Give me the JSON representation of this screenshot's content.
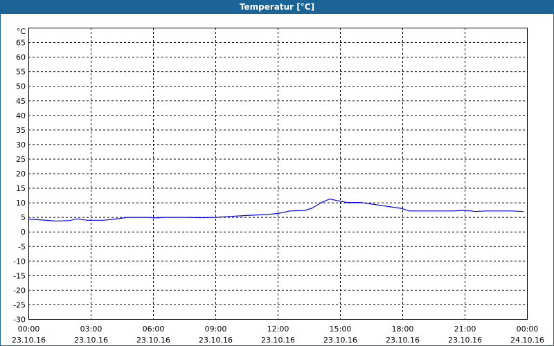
{
  "window": {
    "title": "Temperatur [°C]"
  },
  "chart_data": {
    "type": "line",
    "title": "Temperatur [°C]",
    "ylabel": "°C",
    "ylim": [
      -30,
      70
    ],
    "yticks": [
      65,
      60,
      55,
      50,
      45,
      40,
      35,
      30,
      25,
      20,
      15,
      10,
      5,
      0,
      -5,
      -10,
      -15,
      -20,
      -25,
      -30
    ],
    "xlim": [
      "23.10.16 00:00",
      "24.10.16 00:00"
    ],
    "xticks": [
      {
        "time": "00:00",
        "date": "23.10.16"
      },
      {
        "time": "03:00",
        "date": "23.10.16"
      },
      {
        "time": "06:00",
        "date": "23.10.16"
      },
      {
        "time": "09:00",
        "date": "23.10.16"
      },
      {
        "time": "12:00",
        "date": "23.10.16"
      },
      {
        "time": "15:00",
        "date": "23.10.16"
      },
      {
        "time": "18:00",
        "date": "23.10.16"
      },
      {
        "time": "21:00",
        "date": "23.10.16"
      },
      {
        "time": "00:00",
        "date": "24.10.16"
      }
    ],
    "grid": true,
    "line_color": "#0000ff",
    "series": [
      {
        "date": "23.10.16",
        "x": [
          "00:02",
          "00:40",
          "01:20",
          "02:00",
          "02:20",
          "02:50",
          "03:36",
          "04:10",
          "04:46",
          "05:46",
          "06:10",
          "06:30",
          "07:40",
          "08:20",
          "09:00",
          "09:40",
          "10:40",
          "11:30",
          "12:00",
          "12:36",
          "13:20",
          "13:40",
          "14:04",
          "14:30",
          "14:50",
          "15:20",
          "16:00",
          "16:40",
          "17:20",
          "17:56",
          "18:20",
          "20:30",
          "20:50",
          "21:20",
          "21:30",
          "22:00",
          "23:16",
          "23:50"
        ],
        "y": [
          4.3,
          4.0,
          3.6,
          3.8,
          4.4,
          3.9,
          3.9,
          4.3,
          4.9,
          4.9,
          4.7,
          4.9,
          4.9,
          4.8,
          4.9,
          5.2,
          5.6,
          5.9,
          6.2,
          7.1,
          7.3,
          8.1,
          9.8,
          11.2,
          10.7,
          10.0,
          10.0,
          9.3,
          8.6,
          8.0,
          7.1,
          7.1,
          7.3,
          7.1,
          6.9,
          7.1,
          7.1,
          6.9
        ]
      }
    ]
  }
}
